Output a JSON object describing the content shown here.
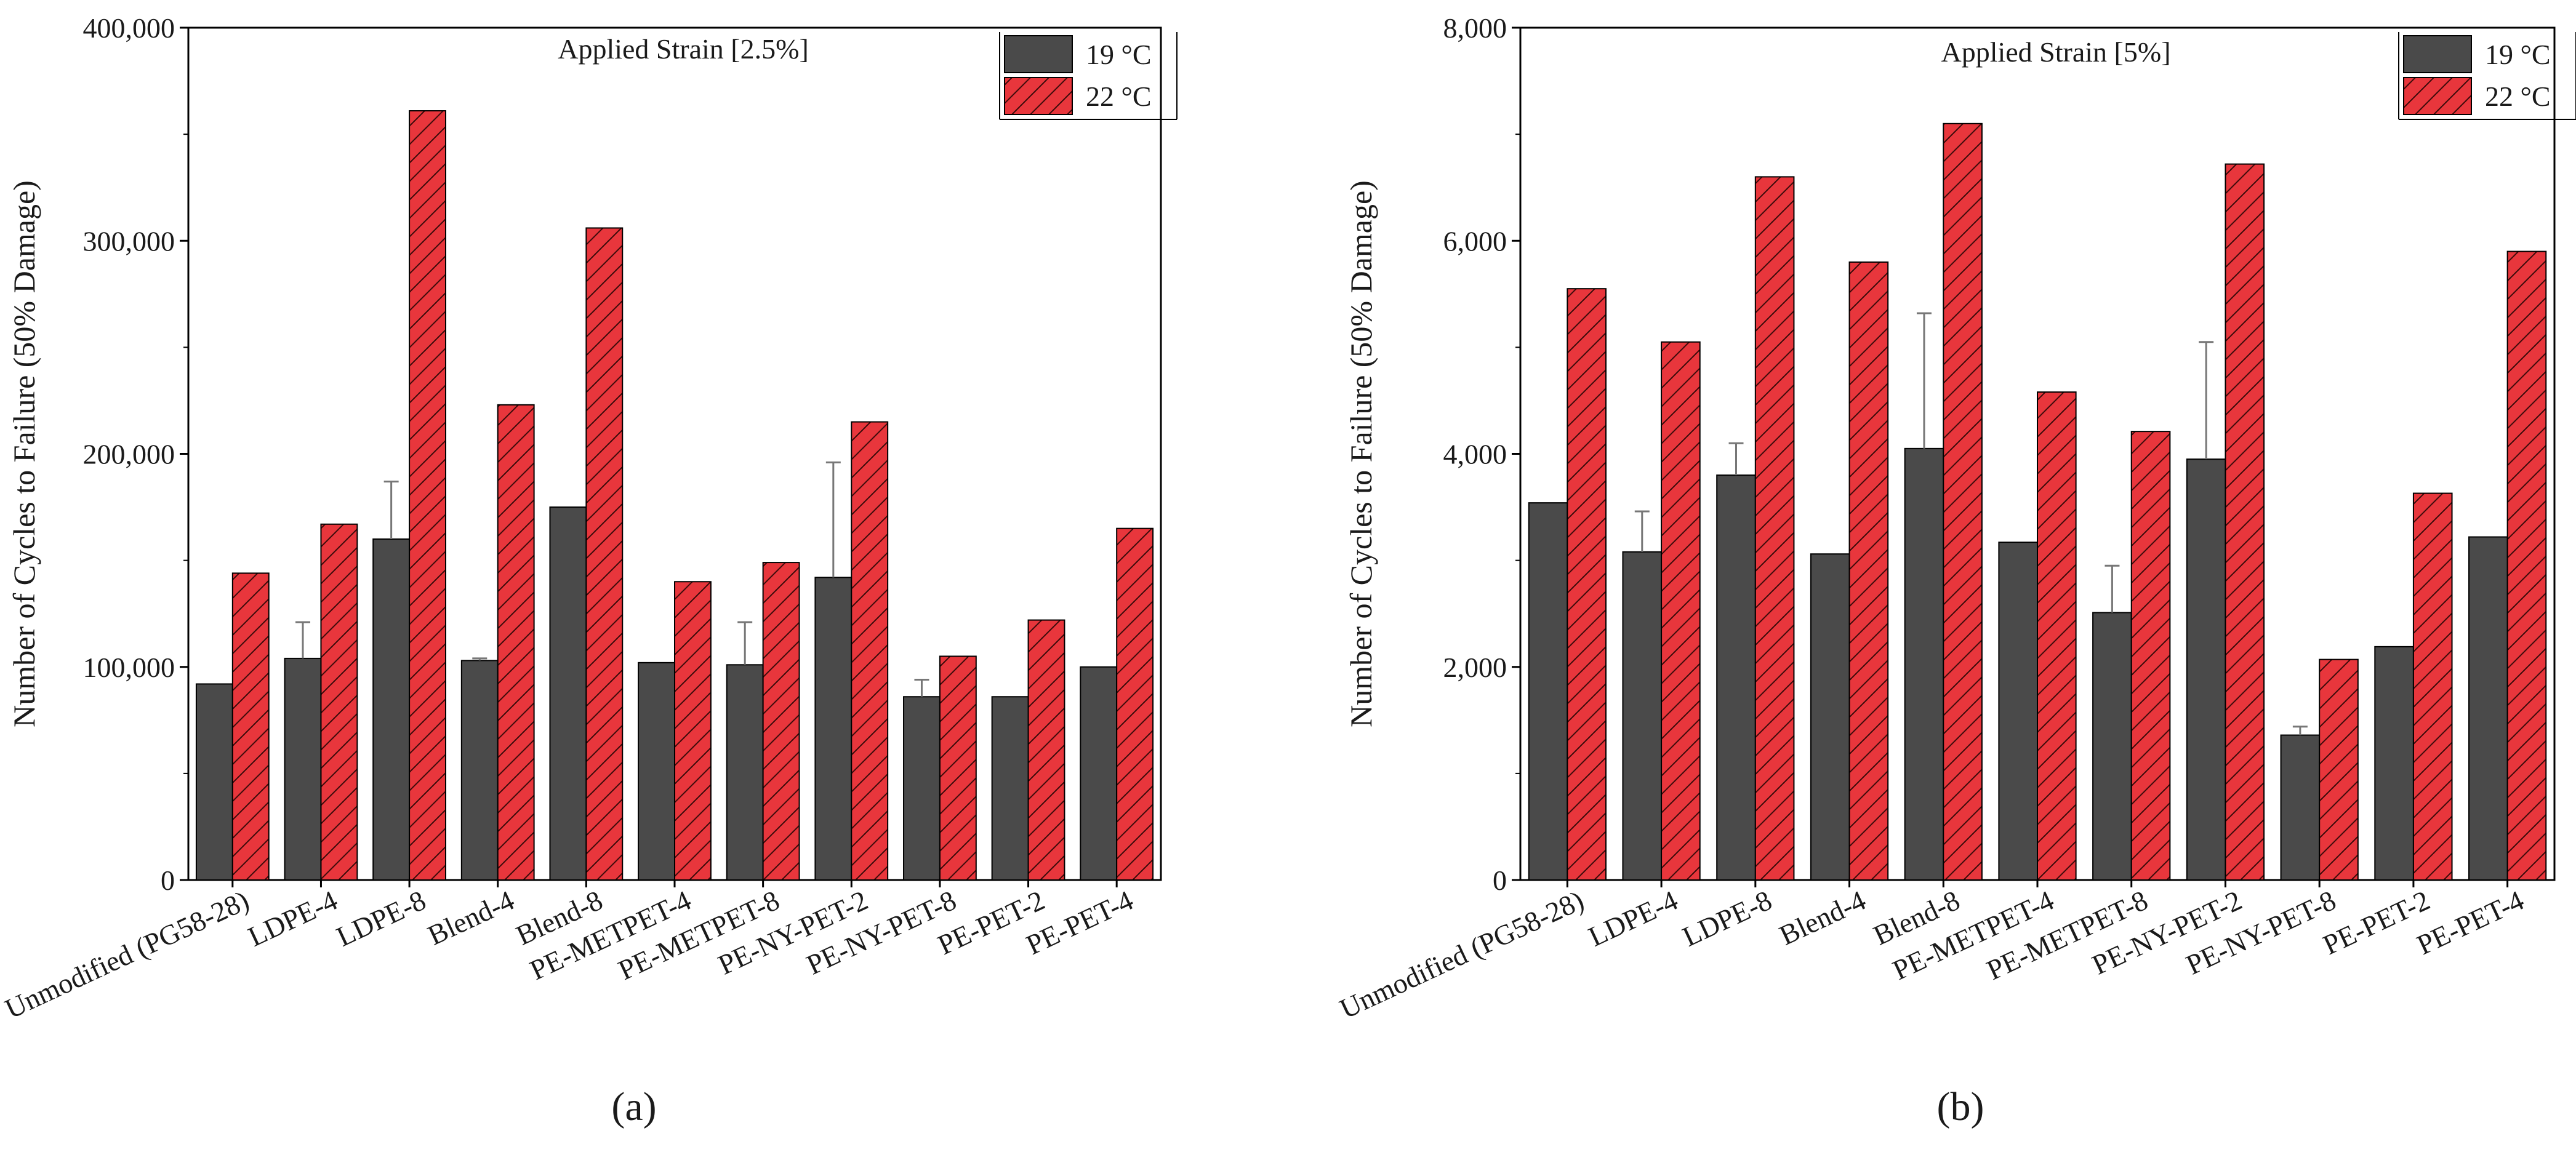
{
  "figure": {
    "panel_labels": [
      "(a)",
      "(b)"
    ]
  },
  "chart_data": [
    {
      "type": "bar",
      "annotation": "Applied Strain [2.5%]",
      "xlabel": "",
      "ylabel": "Number of Cycles to Failure (50% Damage)",
      "ylim": [
        0,
        400000
      ],
      "yticks": [
        0,
        100000,
        200000,
        300000,
        400000
      ],
      "ytick_labels": [
        "0",
        "100,000",
        "200,000",
        "300,000",
        "400,000"
      ],
      "legend_position": "top-right",
      "categories": [
        "Unmodified (PG58-28)",
        "LDPE-4",
        "LDPE-8",
        "Blend-4",
        "Blend-8",
        "PE-METPET-4",
        "PE-METPET-8",
        "PE-NY-PET-2",
        "PE-NY-PET-8",
        "PE-PET-2",
        "PE-PET-4"
      ],
      "series": [
        {
          "name": "19 °C",
          "color": "#4a4a4a",
          "pattern": "solid",
          "values": [
            92000,
            104000,
            160000,
            103000,
            175000,
            102000,
            101000,
            142000,
            86000,
            86000,
            100000
          ],
          "error_upper": [
            null,
            121000,
            187000,
            104000,
            null,
            null,
            121000,
            196000,
            94000,
            null,
            null
          ]
        },
        {
          "name": "22 °C",
          "color": "#e8363c",
          "pattern": "hatched",
          "values": [
            144000,
            167000,
            361000,
            223000,
            306000,
            140000,
            149000,
            215000,
            105000,
            122000,
            165000
          ]
        }
      ]
    },
    {
      "type": "bar",
      "annotation": "Applied Strain [5%]",
      "xlabel": "",
      "ylabel": "Number of Cycles to Failure (50% Damage)",
      "ylim": [
        0,
        8000
      ],
      "yticks": [
        0,
        2000,
        4000,
        6000,
        8000
      ],
      "ytick_labels": [
        "0",
        "2,000",
        "4,000",
        "6,000",
        "8,000"
      ],
      "legend_position": "top-right",
      "categories": [
        "Unmodified (PG58-28)",
        "LDPE-4",
        "LDPE-8",
        "Blend-4",
        "Blend-8",
        "PE-METPET-4",
        "PE-METPET-8",
        "PE-NY-PET-2",
        "PE-NY-PET-8",
        "PE-PET-2",
        "PE-PET-4"
      ],
      "series": [
        {
          "name": "19 °C",
          "color": "#4a4a4a",
          "pattern": "solid",
          "values": [
            3540,
            3080,
            3800,
            3060,
            4050,
            3170,
            2510,
            3950,
            1360,
            2190,
            3220
          ],
          "error_upper": [
            null,
            3460,
            4100,
            null,
            5320,
            null,
            2950,
            5050,
            1440,
            null,
            null
          ]
        },
        {
          "name": "22 °C",
          "color": "#e8363c",
          "pattern": "hatched",
          "values": [
            5550,
            5050,
            6600,
            5800,
            7100,
            4580,
            4210,
            6720,
            2070,
            3630,
            5900
          ]
        }
      ]
    }
  ]
}
